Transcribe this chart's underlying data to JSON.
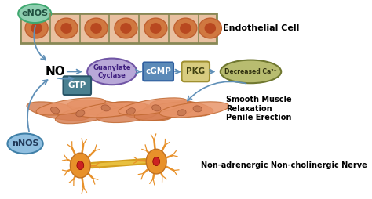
{
  "bg_color": "#ffffff",
  "enos_label": "eNOS",
  "nnos_label": "nNOS",
  "no_label": "NO",
  "endothelial_label": "Endothelial Cell",
  "smooth_muscle_label": "Smooth Muscle\nRelaxation\nPenile Erection",
  "nanc_label": "Non-adrenergic Non-cholinergic Nerve",
  "pathway_labels": [
    "Guanylate\nCyclase",
    "cGMP",
    "PKG",
    "Decreased Ca²⁺"
  ],
  "gtp_label": "GTP",
  "enos_color": "#8ecfb0",
  "nnos_color": "#90bfe0",
  "guanylate_color": "#b8a8d8",
  "cgmp_color": "#5b8ab8",
  "pkg_color": "#d8cc80",
  "decreased_ca_color": "#b8bc70",
  "gtp_color": "#4a8090",
  "endothelial_bg": "#e8c0a0",
  "endothelial_border": "#888855",
  "cell_color": "#d07840",
  "cell_border": "#c06030",
  "nucleus_color": "#b84820",
  "smooth_muscle_color1": "#e8956a",
  "smooth_muscle_color2": "#d88055",
  "smooth_muscle_border": "#c06830",
  "neuron_color": "#e8912a",
  "neuron_border": "#c07020",
  "axon_color": "#d4a020",
  "axon_color2": "#e8c040",
  "neuron_nucleus": "#cc2222",
  "arrow_color": "#6090b8"
}
